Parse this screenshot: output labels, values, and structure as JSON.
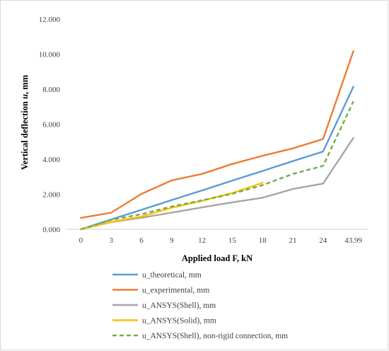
{
  "chart_data": {
    "type": "line",
    "categories": [
      "0",
      "3",
      "6",
      "9",
      "12",
      "15",
      "18",
      "21",
      "24",
      "43.99"
    ],
    "xlabel": "Applied load F, kN",
    "ylabel_prefix": "Vertical deflection ",
    "ylabel_var": "u",
    "ylabel_suffix": ", mm",
    "ylim": [
      0,
      12
    ],
    "yticks": [
      "0.000",
      "2.000",
      "4.000",
      "6.000",
      "8.000",
      "10.000",
      "12.000"
    ],
    "grid": false,
    "legend_position": "bottom",
    "series": [
      {
        "name": "u_theoretical, mm",
        "color": "#5b9bd5",
        "dash": false,
        "values": [
          0.0,
          0.56,
          1.11,
          1.67,
          2.22,
          2.78,
          3.33,
          3.89,
          4.44,
          8.14
        ]
      },
      {
        "name": "u_experimental, mm",
        "color": "#ed7d31",
        "dash": false,
        "values": [
          0.65,
          0.95,
          2.02,
          2.79,
          3.16,
          3.73,
          4.2,
          4.62,
          5.15,
          10.17
        ]
      },
      {
        "name": "u_ANSYS(Shell), mm",
        "color": "#a5a5a5",
        "dash": false,
        "values": [
          0.0,
          0.41,
          0.66,
          0.95,
          1.25,
          1.54,
          1.8,
          2.3,
          2.61,
          5.21
        ]
      },
      {
        "name": "u_ANSYS(Solid), mm",
        "color": "#ffc000",
        "dash": false,
        "values": [
          0.0,
          0.42,
          0.73,
          1.23,
          1.63,
          2.07,
          2.65,
          null,
          null,
          null
        ]
      },
      {
        "name": "u_ANSYS(Shell), non-rigid connection, mm",
        "color": "#70ad47",
        "dash": true,
        "values": [
          0.0,
          0.54,
          0.86,
          1.3,
          1.65,
          2.03,
          2.52,
          3.16,
          3.62,
          7.3
        ]
      }
    ]
  }
}
